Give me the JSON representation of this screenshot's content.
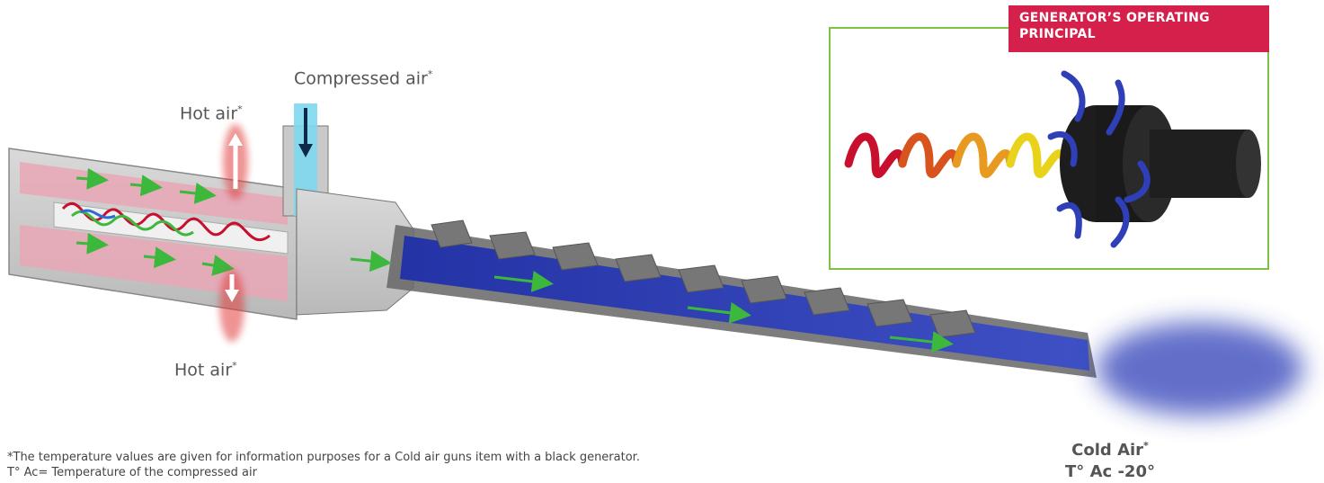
{
  "labels": {
    "compressed_air": "Compressed air",
    "compressed_air_mark": "*",
    "hot_air_top": "Hot air",
    "hot_air_top_mark": "*",
    "hot_air_bottom": "Hot air",
    "hot_air_bottom_mark": "*"
  },
  "inset": {
    "title": "GENERATOR’S OPERATING PRINCIPAL"
  },
  "output": {
    "cold_air": "Cold Air",
    "cold_air_mark": "*",
    "temperature": "T° Ac -20°"
  },
  "footnote": {
    "line1": "*The temperature values are given for information purposes for a Cold air guns item with a black generator.",
    "line2": "T° Ac= Temperature of the compressed air"
  },
  "colors": {
    "accent_red": "#d4204a",
    "inset_border": "#7dc242",
    "flow_arrow": "#3cb83c",
    "cold_blue": "#2e3fb8",
    "hot_red": "#e23a3a",
    "compressed_cyan": "#7fd8f0"
  }
}
